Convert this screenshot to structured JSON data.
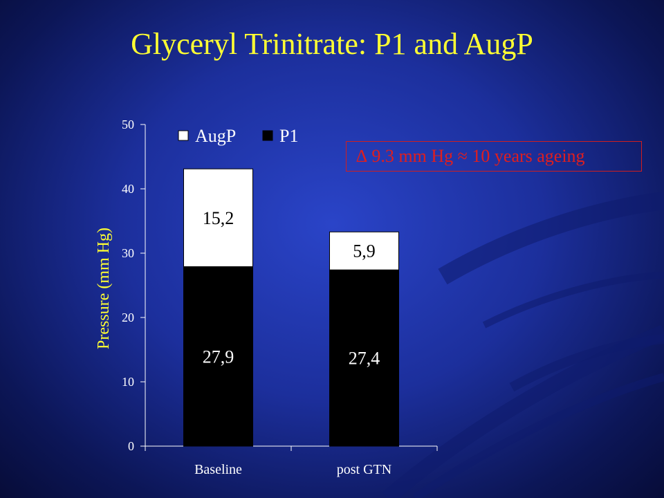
{
  "slide": {
    "title": "Glyceryl Trinitrate: P1 and AugP",
    "annotation": "∆ 9.3 mm Hg ≈ 10 years ageing"
  },
  "colors": {
    "title": "#ffff33",
    "annotation": "#e01e1e",
    "p1": "#000000",
    "augp": "#ffffff"
  },
  "chart_data": {
    "type": "bar",
    "stacked": true,
    "categories": [
      "Baseline",
      "post GTN"
    ],
    "series": [
      {
        "name": "P1",
        "values": [
          27.9,
          27.4
        ],
        "labels": [
          "27,9",
          "27,4"
        ]
      },
      {
        "name": "AugP",
        "values": [
          15.2,
          5.9
        ],
        "labels": [
          "15,2",
          "5,9"
        ]
      }
    ],
    "legend": [
      "AugP",
      "P1"
    ],
    "legend_position": "top-left",
    "ylabel": "Pressure (mm Hg)",
    "xlabel": "",
    "ylim": [
      0,
      50
    ],
    "yticks": [
      0,
      10,
      20,
      30,
      40,
      50
    ],
    "grid": false
  }
}
